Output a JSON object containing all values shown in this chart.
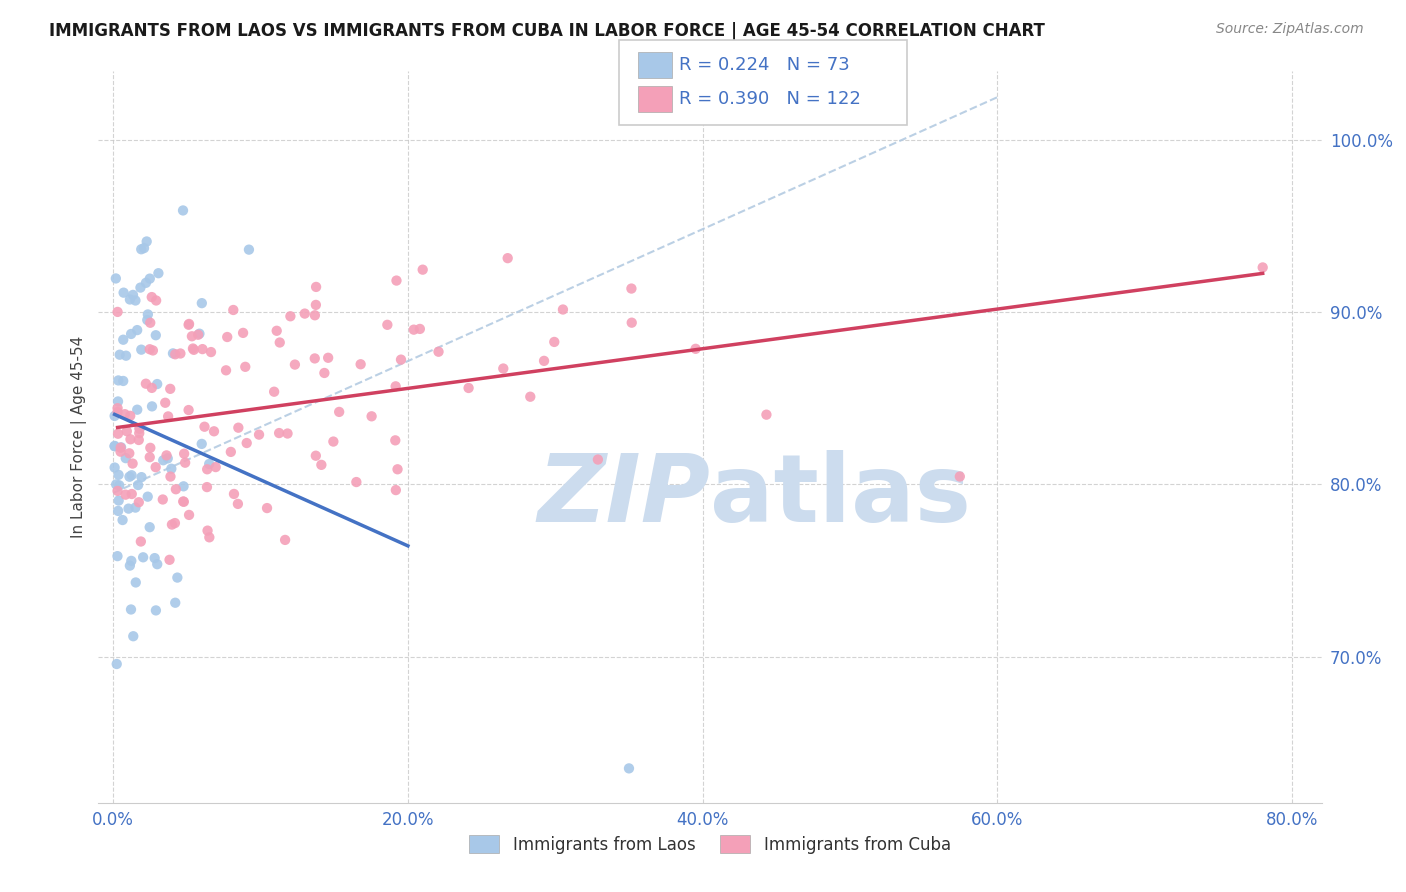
{
  "title": "IMMIGRANTS FROM LAOS VS IMMIGRANTS FROM CUBA IN LABOR FORCE | AGE 45-54 CORRELATION CHART",
  "source_text": "Source: ZipAtlas.com",
  "ylabel": "In Labor Force | Age 45-54",
  "xlim": [
    -0.01,
    0.82
  ],
  "ylim": [
    0.615,
    1.04
  ],
  "ytick_labels": [
    "70.0%",
    "80.0%",
    "90.0%",
    "100.0%"
  ],
  "ytick_values": [
    0.7,
    0.8,
    0.9,
    1.0
  ],
  "xtick_labels": [
    "0.0%",
    "20.0%",
    "40.0%",
    "60.0%",
    "80.0%"
  ],
  "xtick_values": [
    0.0,
    0.2,
    0.4,
    0.6,
    0.8
  ],
  "legend_label_laos": "Immigrants from Laos",
  "legend_label_cuba": "Immigrants from Cuba",
  "R_laos": "0.224",
  "N_laos": "73",
  "R_cuba": "0.390",
  "N_cuba": "122",
  "color_laos": "#a8c8e8",
  "color_cuba": "#f4a0b8",
  "trendline_laos_color": "#4472c4",
  "trendline_cuba_color": "#d04060",
  "diagonal_color": "#b0c8e0",
  "watermark_color": "#ccdcee"
}
